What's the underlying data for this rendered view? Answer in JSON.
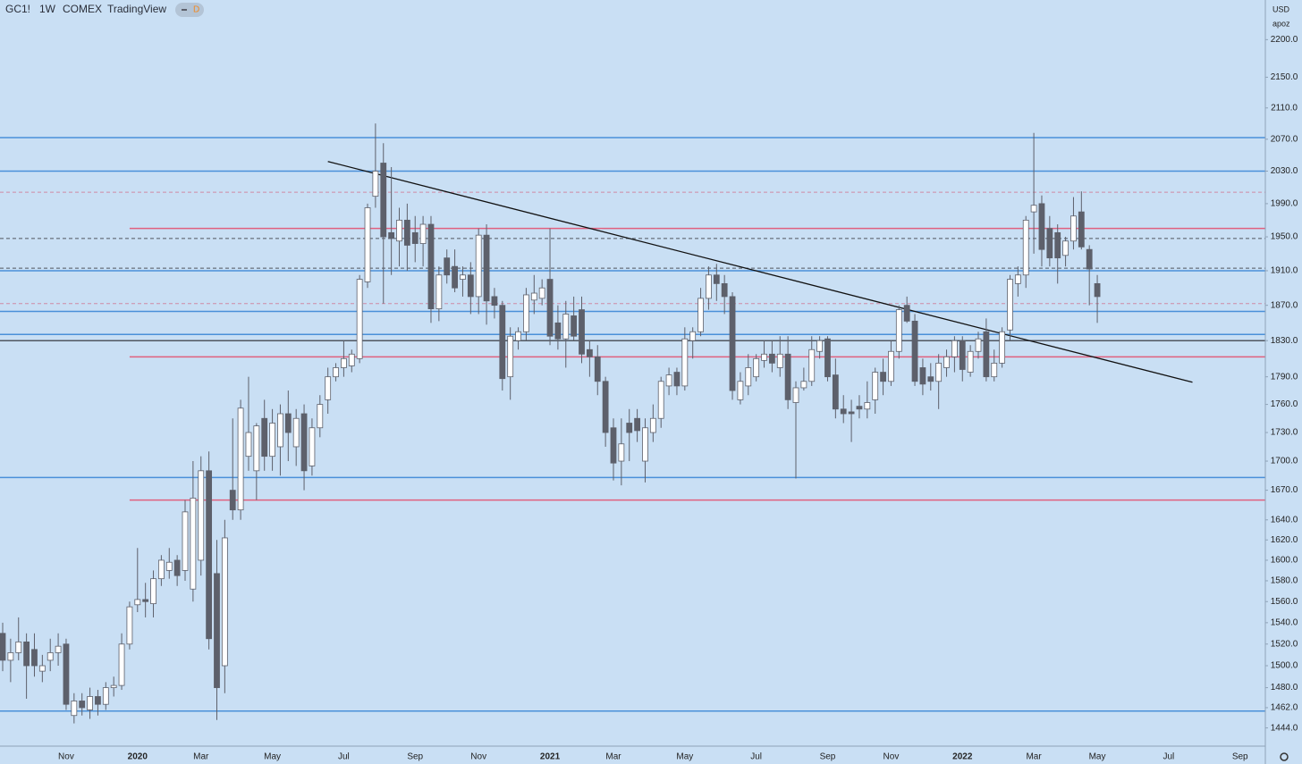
{
  "header": {
    "symbol": "GC1!",
    "interval": "1W",
    "exchange": "COMEX",
    "source": "TradingView",
    "badge": "D"
  },
  "axis_menu": {
    "currency": "USD",
    "scale": "apoz"
  },
  "chart_data": {
    "type": "candlestick",
    "log": true,
    "grid": false,
    "up_color": "#ffffff",
    "down_color": "#5d606b",
    "categories": [
      null,
      null,
      null,
      null,
      null,
      null,
      null,
      null,
      "Nov",
      null,
      null,
      null,
      null,
      null,
      null,
      null,
      null,
      "2020",
      null,
      null,
      null,
      null,
      null,
      null,
      null,
      "Mar",
      null,
      null,
      null,
      null,
      null,
      null,
      null,
      null,
      "May",
      null,
      null,
      null,
      null,
      null,
      null,
      null,
      null,
      "Jul",
      null,
      null,
      null,
      null,
      null,
      null,
      null,
      null,
      "Sep",
      null,
      null,
      null,
      null,
      null,
      null,
      null,
      "Nov",
      null,
      null,
      null,
      null,
      null,
      null,
      null,
      null,
      "2021",
      null,
      null,
      null,
      null,
      null,
      null,
      null,
      "Mar",
      null,
      null,
      null,
      null,
      null,
      null,
      null,
      null,
      "May",
      null,
      null,
      null,
      null,
      null,
      null,
      null,
      null,
      "Jul",
      null,
      null,
      null,
      null,
      null,
      null,
      null,
      null,
      "Sep",
      null,
      null,
      null,
      null,
      null,
      null,
      null,
      "Nov",
      null,
      null,
      null,
      null,
      null,
      null,
      null,
      null,
      "2022",
      null,
      null,
      null,
      null,
      null,
      null,
      null,
      null,
      "Mar",
      null,
      null,
      null,
      null,
      null,
      null,
      null,
      "May",
      null,
      null,
      null,
      null,
      null,
      null,
      null,
      null,
      "Jul",
      null,
      null,
      null,
      null,
      null,
      null,
      null,
      null,
      "Sep",
      null,
      null
    ],
    "open": [
      1530,
      1505,
      1512,
      1522,
      1515,
      1495,
      1505,
      1512,
      1520,
      1455,
      1468,
      1460,
      1472,
      1465,
      1480,
      1482,
      1520,
      1557,
      1562,
      1558,
      1582,
      1590,
      1600,
      1590,
      1572,
      1600,
      1690,
      1587,
      1500,
      1670,
      1650,
      1705,
      1690,
      1745,
      1705,
      1715,
      1750,
      1715,
      1750,
      1695,
      1735,
      1765,
      1790,
      1800,
      1802,
      1810,
      1897,
      1999,
      2040,
      1955,
      1945,
      1970,
      1955,
      1942,
      1965,
      1866,
      1925,
      1915,
      1900,
      1905,
      1880,
      1952,
      1880,
      1870,
      1790,
      1830,
      1840,
      1876,
      1878,
      1900,
      1850,
      1832,
      1858,
      1865,
      1820,
      1812,
      1785,
      1735,
      1700,
      1740,
      1745,
      1700,
      1730,
      1745,
      1780,
      1795,
      1780,
      1830,
      1840,
      1878,
      1905,
      1895,
      1880,
      1765,
      1780,
      1790,
      1808,
      1815,
      1800,
      1815,
      1762,
      1778,
      1785,
      1818,
      1832,
      1792,
      1755,
      1752,
      1758,
      1755,
      1765,
      1795,
      1785,
      1818,
      1870,
      1852,
      1800,
      1790,
      1785,
      1800,
      1812,
      1830,
      1795,
      1818,
      1840,
      1790,
      1805,
      1842,
      1895,
      1905,
      1980,
      1990,
      1960,
      1955,
      1928,
      1945,
      1980,
      1935,
      1895,
      null,
      null,
      null,
      null,
      null,
      null,
      null,
      null,
      null,
      null,
      null,
      null,
      null,
      null,
      null,
      null,
      null,
      null,
      null,
      null
    ],
    "high": [
      1540,
      1525,
      1545,
      1530,
      1530,
      1510,
      1525,
      1530,
      1525,
      1475,
      1475,
      1480,
      1478,
      1485,
      1490,
      1530,
      1560,
      1612,
      1578,
      1590,
      1605,
      1612,
      1605,
      1660,
      1700,
      1705,
      1710,
      1620,
      1640,
      1745,
      1765,
      1790,
      1740,
      1765,
      1755,
      1760,
      1775,
      1755,
      1760,
      1745,
      1770,
      1800,
      1805,
      1830,
      1820,
      1905,
      1990,
      2090,
      2065,
      2035,
      1985,
      1990,
      1975,
      1975,
      1975,
      1915,
      1935,
      1935,
      1915,
      1920,
      1960,
      1965,
      1890,
      1875,
      1845,
      1845,
      1890,
      1905,
      1900,
      1960,
      1870,
      1875,
      1880,
      1880,
      1830,
      1825,
      1790,
      1745,
      1745,
      1755,
      1755,
      1745,
      1760,
      1790,
      1800,
      1800,
      1845,
      1845,
      1890,
      1915,
      1918,
      1905,
      1885,
      1795,
      1815,
      1815,
      1830,
      1830,
      1835,
      1835,
      1785,
      1800,
      1835,
      1835,
      1835,
      1810,
      1770,
      1765,
      1770,
      1785,
      1800,
      1810,
      1830,
      1870,
      1880,
      1860,
      1810,
      1805,
      1815,
      1820,
      1835,
      1835,
      1825,
      1840,
      1855,
      1820,
      1845,
      1905,
      1915,
      1975,
      2078,
      2000,
      1975,
      1965,
      1950,
      1998,
      2005,
      1940,
      1905,
      null,
      null,
      null,
      null,
      null,
      null,
      null,
      null,
      null,
      null,
      null,
      null,
      null,
      null,
      null,
      null,
      null,
      null,
      null,
      null
    ],
    "low": [
      1495,
      1485,
      1505,
      1470,
      1490,
      1485,
      1495,
      1500,
      1460,
      1448,
      1455,
      1452,
      1455,
      1460,
      1472,
      1478,
      1515,
      1550,
      1545,
      1545,
      1575,
      1582,
      1575,
      1580,
      1560,
      1585,
      1515,
      1451,
      1475,
      1640,
      1640,
      1690,
      1660,
      1690,
      1690,
      1685,
      1700,
      1695,
      1670,
      1685,
      1725,
      1750,
      1785,
      1790,
      1795,
      1805,
      1890,
      1985,
      1872,
      1905,
      1915,
      1910,
      1920,
      1915,
      1850,
      1852,
      1895,
      1885,
      1880,
      1860,
      1860,
      1848,
      1855,
      1775,
      1765,
      1820,
      1830,
      1860,
      1870,
      1825,
      1820,
      1800,
      1830,
      1805,
      1790,
      1770,
      1715,
      1680,
      1675,
      1700,
      1720,
      1678,
      1720,
      1735,
      1770,
      1770,
      1775,
      1810,
      1835,
      1865,
      1875,
      1860,
      1765,
      1760,
      1770,
      1785,
      1800,
      1795,
      1790,
      1755,
      1682,
      1775,
      1780,
      1810,
      1785,
      1745,
      1740,
      1720,
      1745,
      1745,
      1750,
      1770,
      1780,
      1810,
      1850,
      1780,
      1770,
      1775,
      1755,
      1790,
      1795,
      1785,
      1790,
      1810,
      1785,
      1785,
      1800,
      1830,
      1880,
      1890,
      1930,
      1915,
      1915,
      1895,
      1915,
      1935,
      1935,
      1870,
      1850,
      null,
      null,
      null,
      null,
      null,
      null,
      null,
      null,
      null,
      null,
      null,
      null,
      null,
      null,
      null,
      null,
      null,
      null,
      null,
      null
    ],
    "close": [
      1505,
      1512,
      1522,
      1500,
      1500,
      1500,
      1512,
      1518,
      1465,
      1468,
      1462,
      1472,
      1465,
      1480,
      1482,
      1520,
      1555,
      1562,
      1560,
      1582,
      1600,
      1598,
      1585,
      1648,
      1662,
      1690,
      1525,
      1480,
      1622,
      1650,
      1756,
      1730,
      1737,
      1705,
      1740,
      1750,
      1730,
      1745,
      1690,
      1735,
      1760,
      1790,
      1800,
      1810,
      1815,
      1900,
      1985,
      2030,
      1950,
      1948,
      1970,
      1940,
      1942,
      1965,
      1866,
      1905,
      1905,
      1890,
      1905,
      1880,
      1952,
      1875,
      1870,
      1788,
      1835,
      1840,
      1882,
      1884,
      1890,
      1835,
      1832,
      1860,
      1835,
      1815,
      1812,
      1785,
      1730,
      1698,
      1718,
      1730,
      1732,
      1735,
      1745,
      1785,
      1792,
      1780,
      1832,
      1840,
      1878,
      1905,
      1895,
      1880,
      1775,
      1785,
      1800,
      1810,
      1815,
      1805,
      1815,
      1765,
      1778,
      1785,
      1820,
      1830,
      1790,
      1755,
      1750,
      1750,
      1755,
      1762,
      1795,
      1785,
      1818,
      1865,
      1852,
      1785,
      1782,
      1785,
      1805,
      1812,
      1830,
      1798,
      1818,
      1832,
      1790,
      1805,
      1840,
      1900,
      1905,
      1970,
      1988,
      1935,
      1925,
      1925,
      1945,
      1975,
      1938,
      1912,
      1880,
      null,
      null,
      null,
      null,
      null,
      null,
      null,
      null,
      null,
      null,
      null,
      null,
      null,
      null,
      null,
      null,
      null,
      null,
      null,
      null
    ],
    "ylim": [
      1428,
      2254
    ],
    "yticks": [
      {
        "value": 2200,
        "label": "2200.0"
      },
      {
        "value": 2150,
        "label": "2150.0"
      },
      {
        "value": 2110,
        "label": "2110.0"
      },
      {
        "value": 2070,
        "label": "2070.0"
      },
      {
        "value": 2030,
        "label": "2030.0"
      },
      {
        "value": 1990,
        "label": "1990.0"
      },
      {
        "value": 1950,
        "label": "1950.0"
      },
      {
        "value": 1910,
        "label": "1910.0"
      },
      {
        "value": 1870,
        "label": "1870.0"
      },
      {
        "value": 1830,
        "label": "1830.0"
      },
      {
        "value": 1790,
        "label": "1790.0"
      },
      {
        "value": 1760,
        "label": "1760.0"
      },
      {
        "value": 1730,
        "label": "1730.0"
      },
      {
        "value": 1700,
        "label": "1700.0"
      },
      {
        "value": 1670,
        "label": "1670.0"
      },
      {
        "value": 1640,
        "label": "1640.0"
      },
      {
        "value": 1620,
        "label": "1620.0"
      },
      {
        "value": 1600,
        "label": "1600.0"
      },
      {
        "value": 1580,
        "label": "1580.0"
      },
      {
        "value": 1560,
        "label": "1560.0"
      },
      {
        "value": 1540,
        "label": "1540.0"
      },
      {
        "value": 1520,
        "label": "1520.0"
      },
      {
        "value": 1500,
        "label": "1500.0"
      },
      {
        "value": 1480,
        "label": "1480.0"
      },
      {
        "value": 1462,
        "label": "1462.0"
      },
      {
        "value": 1444,
        "label": "1444.0"
      }
    ],
    "levels": [
      {
        "value": 2072,
        "color": "#4a90d9"
      },
      {
        "value": 2030,
        "color": "#4a90d9"
      },
      {
        "value": 2004,
        "color": "#d08aa4",
        "dash": true
      },
      {
        "value": 1960,
        "color": "#e0607e",
        "from": 16
      },
      {
        "value": 1948,
        "color": "#50565f",
        "dash": true
      },
      {
        "value": 1913,
        "color": "#50565f",
        "dash": true
      },
      {
        "value": 1910,
        "color": "#4a90d9"
      },
      {
        "value": 1872,
        "color": "#d08aa4",
        "dash": true
      },
      {
        "value": 1863,
        "color": "#4a90d9"
      },
      {
        "value": 1837,
        "color": "#4a90d9"
      },
      {
        "value": 1830,
        "color": "#50565f"
      },
      {
        "value": 1812,
        "color": "#e0607e",
        "from": 16
      },
      {
        "value": 1683,
        "color": "#4a90d9"
      },
      {
        "value": 1660,
        "color": "#e0607e",
        "from": 16
      },
      {
        "value": 1459,
        "color": "#4a90d9"
      }
    ],
    "trendline": {
      "color": "#111111",
      "points": [
        [
          41,
          2042
        ],
        [
          150,
          1784
        ]
      ]
    }
  }
}
